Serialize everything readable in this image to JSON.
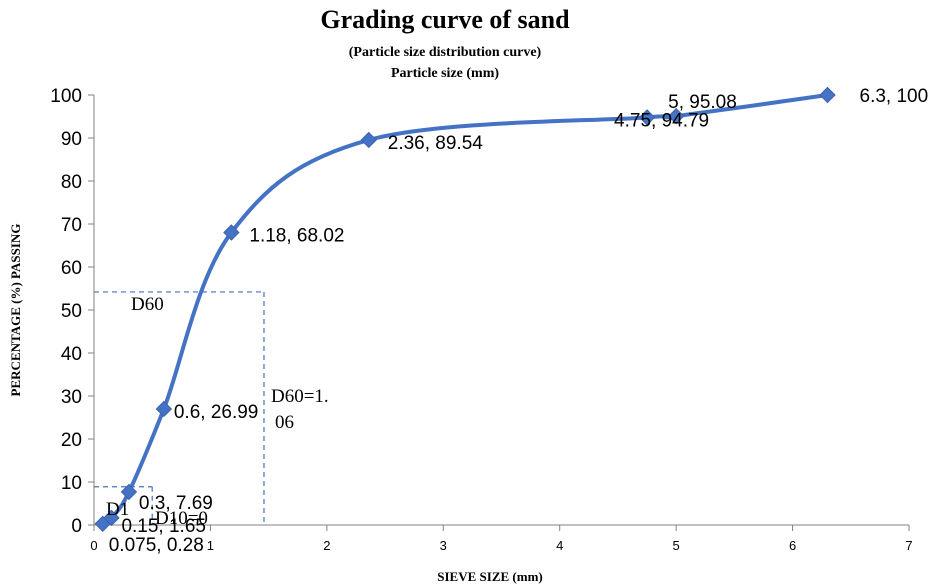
{
  "chart_data": {
    "type": "scatter",
    "title": "Grading curve of sand",
    "subtitle": "(Particle size distribution curve)",
    "subtitle2": "Particle size (mm)",
    "xlabel": "SIEVE SIZE (mm)",
    "ylabel": "PERCENTAGE (%) PASSING",
    "xlim": [
      0,
      7
    ],
    "ylim": [
      0,
      100
    ],
    "xticks": [
      "0",
      "1",
      "2",
      "3",
      "4",
      "5",
      "6",
      "7"
    ],
    "yticks": [
      "0",
      "10",
      "20",
      "30",
      "40",
      "50",
      "60",
      "70",
      "80",
      "90",
      "100"
    ],
    "line_color": "#4472C4",
    "guide_color": "#4472C4",
    "series": [
      {
        "x": [
          0.075,
          0.15,
          0.3,
          0.6,
          1.18,
          2.36,
          4.75,
          5,
          6.3
        ],
        "y": [
          0.28,
          1.65,
          7.69,
          26.99,
          68.02,
          89.54,
          94.79,
          95.08,
          100
        ]
      }
    ],
    "data_labels": [
      "0.075, 0.28",
      "0.15, 1.65",
      "0.3, 7.69",
      "0.6, 26.99",
      "1.18, 68.02",
      "2.36, 89.54",
      "4.75, 94.79",
      "5, 95.08",
      "6.3, 100"
    ],
    "annotations": {
      "d60_label": "D60",
      "d60_value_line1": "D60=1.",
      "d60_value_line2": "06",
      "d10_label": "D1",
      "d10_value": "D10=0"
    }
  }
}
